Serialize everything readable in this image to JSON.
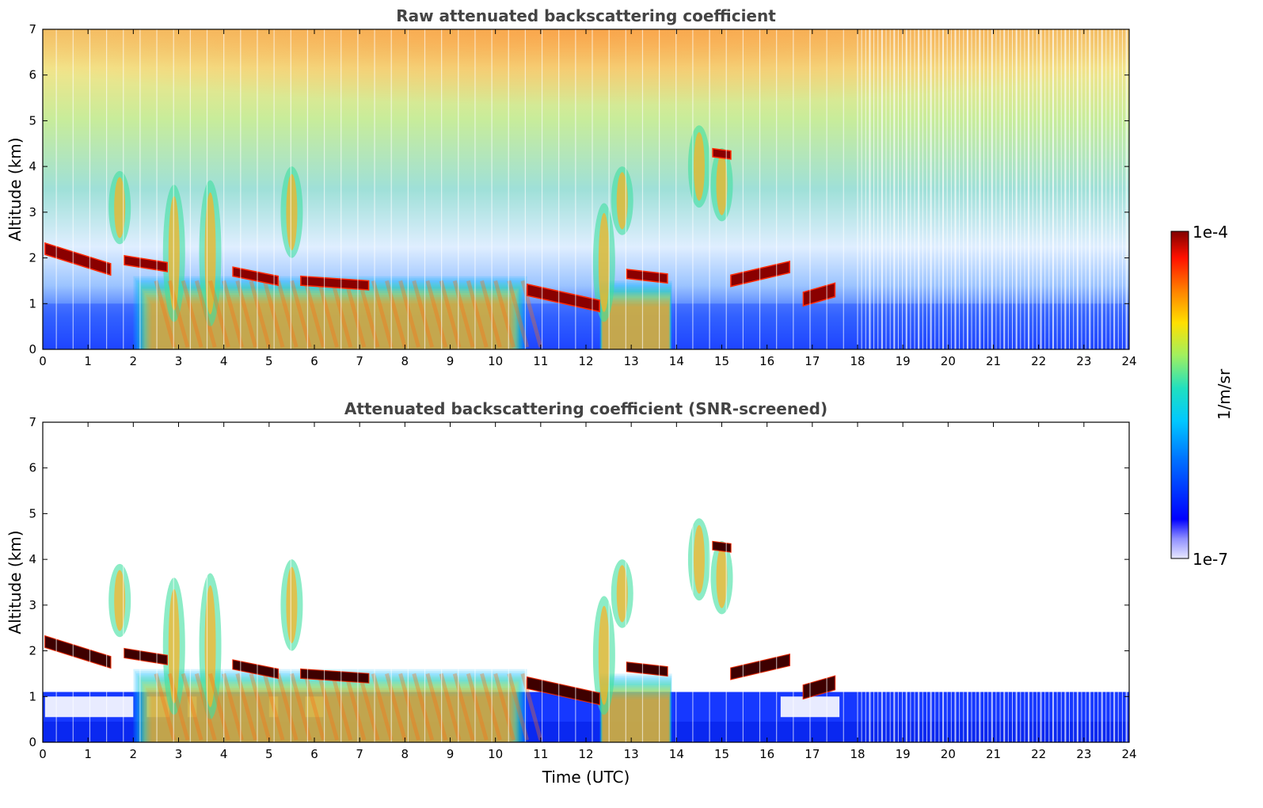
{
  "chart_data": [
    {
      "type": "heatmap",
      "title": "Raw attenuated backscattering coefficient",
      "xlabel": "",
      "ylabel": "Altitude (km)",
      "xlim": [
        0,
        24
      ],
      "ylim": [
        0,
        7
      ],
      "xticks": [
        0,
        1,
        2,
        3,
        4,
        5,
        6,
        7,
        8,
        9,
        10,
        11,
        12,
        13,
        14,
        15,
        16,
        17,
        18,
        19,
        20,
        21,
        22,
        23,
        24
      ],
      "yticks": [
        0,
        1,
        2,
        3,
        4,
        5,
        6,
        7
      ],
      "clouds": [
        {
          "t0": 0.05,
          "t1": 1.5,
          "h0": 2.2,
          "h1": 1.75,
          "thick": 0.25
        },
        {
          "t0": 1.8,
          "t1": 2.75,
          "h0": 1.95,
          "h1": 1.8,
          "thick": 0.2
        },
        {
          "t0": 4.2,
          "t1": 5.2,
          "h0": 1.7,
          "h1": 1.5,
          "thick": 0.2
        },
        {
          "t0": 5.7,
          "t1": 7.2,
          "h0": 1.5,
          "h1": 1.4,
          "thick": 0.2
        },
        {
          "t0": 10.7,
          "t1": 12.3,
          "h0": 1.3,
          "h1": 0.95,
          "thick": 0.25
        },
        {
          "t0": 12.9,
          "t1": 13.8,
          "h0": 1.65,
          "h1": 1.55,
          "thick": 0.2
        },
        {
          "t0": 14.8,
          "t1": 15.2,
          "h0": 4.3,
          "h1": 4.25,
          "thick": 0.18
        },
        {
          "t0": 15.2,
          "t1": 16.5,
          "h0": 1.5,
          "h1": 1.8,
          "thick": 0.25
        },
        {
          "t0": 16.8,
          "t1": 17.5,
          "h0": 1.1,
          "h1": 1.3,
          "thick": 0.3
        }
      ],
      "aerosol_layers": [
        {
          "t0": 2.0,
          "t1": 10.7,
          "h0": 0.0,
          "h1": 1.6
        },
        {
          "t0": 12.3,
          "t1": 13.9,
          "h0": 0.0,
          "h1": 1.5
        }
      ],
      "plumes": [
        {
          "t": 1.7,
          "h0": 2.3,
          "h1": 3.9
        },
        {
          "t": 2.9,
          "h0": 0.6,
          "h1": 3.6
        },
        {
          "t": 3.7,
          "h0": 0.5,
          "h1": 3.7
        },
        {
          "t": 5.5,
          "h0": 2.0,
          "h1": 4.0
        },
        {
          "t": 12.4,
          "h0": 0.6,
          "h1": 3.2
        },
        {
          "t": 12.8,
          "h0": 2.5,
          "h1": 4.0
        },
        {
          "t": 14.5,
          "h0": 3.1,
          "h1": 4.9
        },
        {
          "t": 15.0,
          "h0": 2.8,
          "h1": 4.4
        }
      ]
    },
    {
      "type": "heatmap",
      "title": "Attenuated backscattering coefficient (SNR-screened)",
      "xlabel": "Time (UTC)",
      "ylabel": "Altitude (km)",
      "xlim": [
        0,
        24
      ],
      "ylim": [
        0,
        7
      ],
      "xticks": [
        0,
        1,
        2,
        3,
        4,
        5,
        6,
        7,
        8,
        9,
        10,
        11,
        12,
        13,
        14,
        15,
        16,
        17,
        18,
        19,
        20,
        21,
        22,
        23,
        24
      ],
      "yticks": [
        0,
        1,
        2,
        3,
        4,
        5,
        6,
        7
      ],
      "boundary_layer_top_km": 1.1
    }
  ],
  "colorbar": {
    "label": "1/m/sr",
    "max_label": "1e-4",
    "min_label": "1e-7",
    "max": 0.0001,
    "min": 1e-07,
    "scale": "log",
    "colors": [
      "#e8e8ff",
      "#0000ff",
      "#00a0ff",
      "#20e0c0",
      "#a0f060",
      "#ffe000",
      "#ff8000",
      "#ff1000",
      "#800000"
    ]
  }
}
